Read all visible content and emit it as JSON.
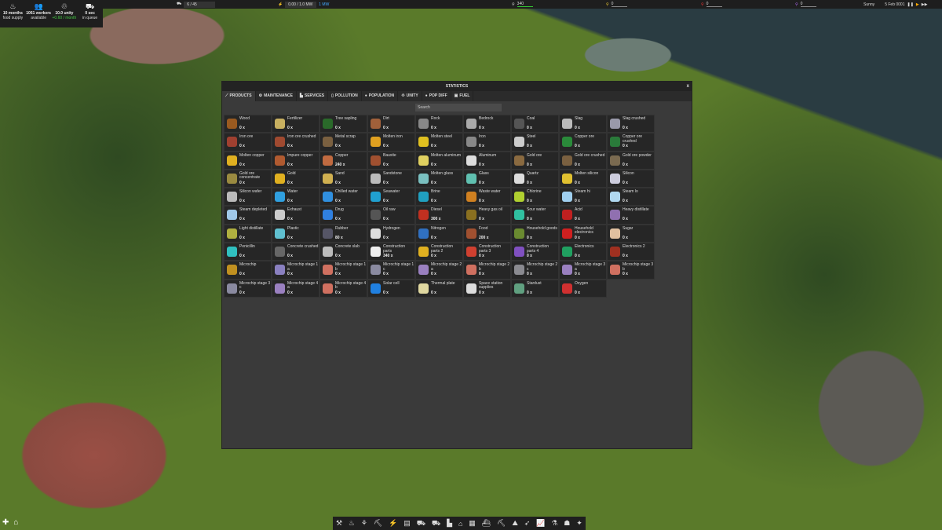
{
  "hud": {
    "food": {
      "value": "10 months",
      "label": "food supply"
    },
    "workers": {
      "value": "1061 workers",
      "label": "available"
    },
    "unity": {
      "value": "10.0 unity",
      "label": "+0.60 / month"
    },
    "queue": {
      "value": "0 sec",
      "label": "in queue"
    },
    "vehicles": "6 / 45",
    "power": "0.00 / 1.0 MW",
    "power_badge": "1 MW",
    "res1": "340",
    "res2": "0",
    "res3": "0",
    "res4": "0",
    "weather": "Sunny",
    "date": "5 Feb 0001"
  },
  "window": {
    "title": "STATISTICS",
    "close": "x",
    "search_placeholder": "Search",
    "tabs": [
      "PRODUCTS",
      "MAINTENANCE",
      "SERVICES",
      "POLLUTION",
      "POPULATION",
      "UNITY",
      "POP DIFF",
      "FUEL"
    ]
  },
  "products": [
    {
      "n": "Wood",
      "c": "0 x",
      "col": "#9a5a20"
    },
    {
      "n": "Fertilizer",
      "c": "0 x",
      "col": "#c8b060"
    },
    {
      "n": "Tree sapling",
      "c": "0 x",
      "col": "#2a6a2a"
    },
    {
      "n": "Dirt",
      "c": "0 x",
      "col": "#a0603a"
    },
    {
      "n": "Rock",
      "c": "0 x",
      "col": "#888"
    },
    {
      "n": "Bedrock",
      "c": "0 x",
      "col": "#aaa"
    },
    {
      "n": "Coal",
      "c": "0 x",
      "col": "#555"
    },
    {
      "n": "Slag",
      "c": "0 x",
      "col": "#bbb"
    },
    {
      "n": "Slag crushed",
      "c": "0 x",
      "col": "#99a"
    },
    {
      "n": "Iron ore",
      "c": "0 x",
      "col": "#a04030"
    },
    {
      "n": "Iron ore crushed",
      "c": "0 x",
      "col": "#a04a30"
    },
    {
      "n": "Metal scrap",
      "c": "0 x",
      "col": "#7a6040"
    },
    {
      "n": "Molten iron",
      "c": "0 x",
      "col": "#e0a020"
    },
    {
      "n": "Molten steel",
      "c": "0 x",
      "col": "#e0c020"
    },
    {
      "n": "Iron",
      "c": "0 x",
      "col": "#888"
    },
    {
      "n": "Steel",
      "c": "0 x",
      "col": "#ccc"
    },
    {
      "n": "Copper ore",
      "c": "0 x",
      "col": "#2a8a3a"
    },
    {
      "n": "Copper ore crushed",
      "c": "0 x",
      "col": "#2a7a3a"
    },
    {
      "n": "Molten copper",
      "c": "0 x",
      "col": "#e0b020"
    },
    {
      "n": "Impure copper",
      "c": "0 x",
      "col": "#b05a30"
    },
    {
      "n": "Copper",
      "c": "240 x",
      "col": "#c06a40"
    },
    {
      "n": "Bauxite",
      "c": "0 x",
      "col": "#a05030"
    },
    {
      "n": "Molten aluminum",
      "c": "0 x",
      "col": "#e0d060"
    },
    {
      "n": "Aluminum",
      "c": "0 x",
      "col": "#ddd"
    },
    {
      "n": "Gold ore",
      "c": "0 x",
      "col": "#8a6a40"
    },
    {
      "n": "Gold ore crushed",
      "c": "0 x",
      "col": "#7a6040"
    },
    {
      "n": "Gold ore powder",
      "c": "0 x",
      "col": "#7a6a50"
    },
    {
      "n": "Gold ore concentrate",
      "c": "0 x",
      "col": "#9a8a40"
    },
    {
      "n": "Gold",
      "c": "0 x",
      "col": "#e0b020"
    },
    {
      "n": "Sand",
      "c": "0 x",
      "col": "#d0b050"
    },
    {
      "n": "Sandstone",
      "c": "0 x",
      "col": "#bbb"
    },
    {
      "n": "Molten glass",
      "c": "0 x",
      "col": "#7ac0c0"
    },
    {
      "n": "Glass",
      "c": "0 x",
      "col": "#60c0b0"
    },
    {
      "n": "Quartz",
      "c": "0 x",
      "col": "#ddd"
    },
    {
      "n": "Molten silicon",
      "c": "0 x",
      "col": "#e0c030"
    },
    {
      "n": "Silicon",
      "c": "0 x",
      "col": "#ccd"
    },
    {
      "n": "Silicon wafer",
      "c": "0 x",
      "col": "#bbb"
    },
    {
      "n": "Water",
      "c": "0 x",
      "col": "#30a0e0"
    },
    {
      "n": "Chilled water",
      "c": "0 x",
      "col": "#3090e0"
    },
    {
      "n": "Seawater",
      "c": "0 x",
      "col": "#20a0d0"
    },
    {
      "n": "Brine",
      "c": "0 x",
      "col": "#20a0c0"
    },
    {
      "n": "Waste water",
      "c": "0 x",
      "col": "#d08020"
    },
    {
      "n": "Chlorine",
      "c": "0 x",
      "col": "#b0d030"
    },
    {
      "n": "Steam hi",
      "c": "0 x",
      "col": "#a0d0f0"
    },
    {
      "n": "Steam lo",
      "c": "0 x",
      "col": "#b0d8f0"
    },
    {
      "n": "Steam depleted",
      "c": "0 x",
      "col": "#a0c8e8"
    },
    {
      "n": "Exhaust",
      "c": "0 x",
      "col": "#ccc"
    },
    {
      "n": "Drug",
      "c": "0 x",
      "col": "#3080e0"
    },
    {
      "n": "Oil raw",
      "c": "0 x",
      "col": "#555"
    },
    {
      "n": "Diesel",
      "c": "300 x",
      "col": "#c03020"
    },
    {
      "n": "Heavy gas oil",
      "c": "0 x",
      "col": "#8a7020"
    },
    {
      "n": "Sour water",
      "c": "0 x",
      "col": "#30c0a0"
    },
    {
      "n": "Acid",
      "c": "0 x",
      "col": "#c02020"
    },
    {
      "n": "Heavy distillate",
      "c": "0 x",
      "col": "#9070b0"
    },
    {
      "n": "Light distillate",
      "c": "0 x",
      "col": "#b0b040"
    },
    {
      "n": "Plastic",
      "c": "0 x",
      "col": "#60c0d0"
    },
    {
      "n": "Rubber",
      "c": "80 x",
      "col": "#556"
    },
    {
      "n": "Hydrogen",
      "c": "0 x",
      "col": "#ddd"
    },
    {
      "n": "Nitrogen",
      "c": "0 x",
      "col": "#3070c0"
    },
    {
      "n": "Food",
      "c": "200 x",
      "col": "#a05030"
    },
    {
      "n": "Household goods",
      "c": "0 x",
      "col": "#6a8a30"
    },
    {
      "n": "Household electronics",
      "c": "0 x",
      "col": "#d02020"
    },
    {
      "n": "Sugar",
      "c": "0 x",
      "col": "#e0c0a0"
    },
    {
      "n": "Penicillin",
      "c": "0 x",
      "col": "#30c0c0"
    },
    {
      "n": "Concrete crushed",
      "c": "0 x",
      "col": "#666"
    },
    {
      "n": "Concrete slab",
      "c": "0 x",
      "col": "#bbb"
    },
    {
      "n": "Construction parts",
      "c": "340 x",
      "col": "#eee"
    },
    {
      "n": "Construction parts 2",
      "c": "0 x",
      "col": "#e0b020"
    },
    {
      "n": "Construction parts 3",
      "c": "0 x",
      "col": "#d04030"
    },
    {
      "n": "Construction parts 4",
      "c": "0 x",
      "col": "#8050c0"
    },
    {
      "n": "Electronics",
      "c": "0 x",
      "col": "#20a060"
    },
    {
      "n": "Electronics 2",
      "c": "0 x",
      "col": "#a03020"
    },
    {
      "n": "Microchip",
      "c": "0 x",
      "col": "#c09020"
    },
    {
      "n": "Microchip stage 1 a",
      "c": "0 x",
      "col": "#8a80c0"
    },
    {
      "n": "Microchip stage 1 b",
      "c": "0 x",
      "col": "#d07060"
    },
    {
      "n": "Microchip stage 1 c",
      "c": "0 x",
      "col": "#8a8aa0"
    },
    {
      "n": "Microchip stage 2 a",
      "c": "0 x",
      "col": "#9a80c0"
    },
    {
      "n": "Microchip stage 2 b",
      "c": "0 x",
      "col": "#d07060"
    },
    {
      "n": "Microchip stage 2 c",
      "c": "0 x",
      "col": "#8a8a90"
    },
    {
      "n": "Microchip stage 3 a",
      "c": "0 x",
      "col": "#9a80c0"
    },
    {
      "n": "Microchip stage 3 b",
      "c": "0 x",
      "col": "#d07060"
    },
    {
      "n": "Microchip stage 3 c",
      "c": "0 x",
      "col": "#8a8aa0"
    },
    {
      "n": "Microchip stage 4 a",
      "c": "0 x",
      "col": "#9a80c0"
    },
    {
      "n": "Microchip stage 4 b",
      "c": "0 x",
      "col": "#d07060"
    },
    {
      "n": "Solar cell",
      "c": "0 x",
      "col": "#2080e0"
    },
    {
      "n": "Thermal plate",
      "c": "0 x",
      "col": "#e0d8a0"
    },
    {
      "n": "Space station supplies",
      "c": "0 x",
      "col": "#ddd"
    },
    {
      "n": "Stardust",
      "c": "0 x",
      "col": "#60a080"
    },
    {
      "n": "Oxygen",
      "c": "0 x",
      "col": "#d03030"
    }
  ],
  "toolbar_icons": [
    "road",
    "fire",
    "farm",
    "mine",
    "power",
    "storage",
    "vehicles",
    "trucks",
    "buildings",
    "factory",
    "warehouse",
    "ship",
    "excavator",
    "terrain",
    "rocket",
    "statistics",
    "research",
    "population",
    "satellite"
  ]
}
